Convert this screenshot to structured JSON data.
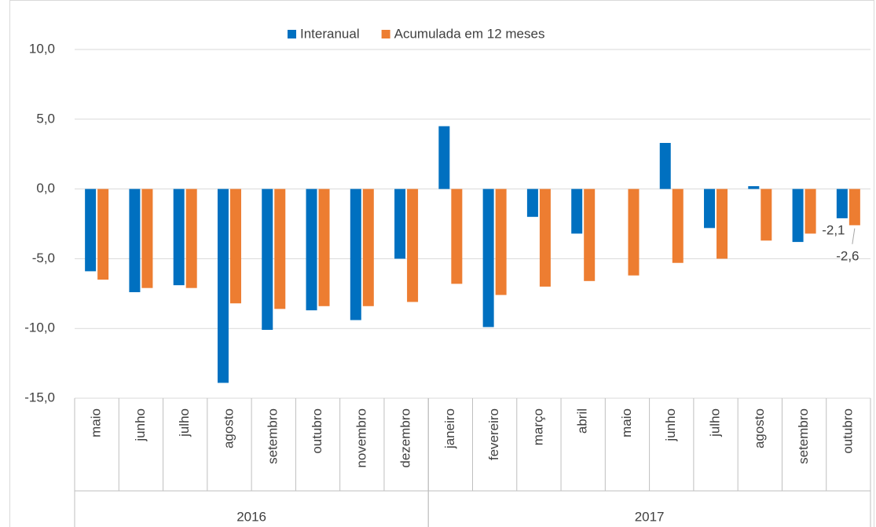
{
  "chart_data": {
    "type": "bar",
    "categories": [
      "maio",
      "junho",
      "julho",
      "agosto",
      "setembro",
      "outubro",
      "novembro",
      "dezembro",
      "janeiro",
      "fevereiro",
      "março",
      "abril",
      "maio",
      "junho",
      "julho",
      "agosto",
      "setembro",
      "outubro"
    ],
    "x_groups": [
      {
        "label": "2016",
        "span": 8
      },
      {
        "label": "2017",
        "span": 10
      }
    ],
    "series": [
      {
        "name": "Interanual",
        "color": "#0070c0",
        "values": [
          -5.9,
          -7.4,
          -6.9,
          -13.9,
          -10.1,
          -8.7,
          -9.4,
          -5.0,
          4.5,
          -9.9,
          -2.0,
          -3.2,
          0,
          3.3,
          -2.8,
          0.2,
          -3.8,
          -2.1
        ],
        "value_labels": [
          null,
          null,
          null,
          null,
          null,
          null,
          null,
          null,
          null,
          null,
          null,
          null,
          null,
          null,
          null,
          null,
          null,
          "-2,1"
        ]
      },
      {
        "name": "Acumulada em 12 meses",
        "color": "#ed7d31",
        "values": [
          -6.5,
          -7.1,
          -7.1,
          -8.2,
          -8.6,
          -8.4,
          -8.4,
          -8.1,
          -6.8,
          -7.6,
          -7.0,
          -6.6,
          -6.2,
          -5.3,
          -5.0,
          -3.7,
          -3.2,
          -2.6
        ],
        "value_labels": [
          null,
          null,
          null,
          null,
          null,
          null,
          null,
          null,
          null,
          null,
          null,
          null,
          null,
          null,
          null,
          null,
          null,
          "-2,6"
        ]
      }
    ],
    "ylim": [
      -15,
      10
    ],
    "yticks": [
      {
        "value": -15,
        "label": "-15,0"
      },
      {
        "value": -10,
        "label": "-10,0"
      },
      {
        "value": -5,
        "label": "-5,0"
      },
      {
        "value": 0,
        "label": "0,0"
      },
      {
        "value": 5,
        "label": "5,0"
      },
      {
        "value": 10,
        "label": "10,0"
      }
    ],
    "grid": true,
    "legend": "top"
  }
}
